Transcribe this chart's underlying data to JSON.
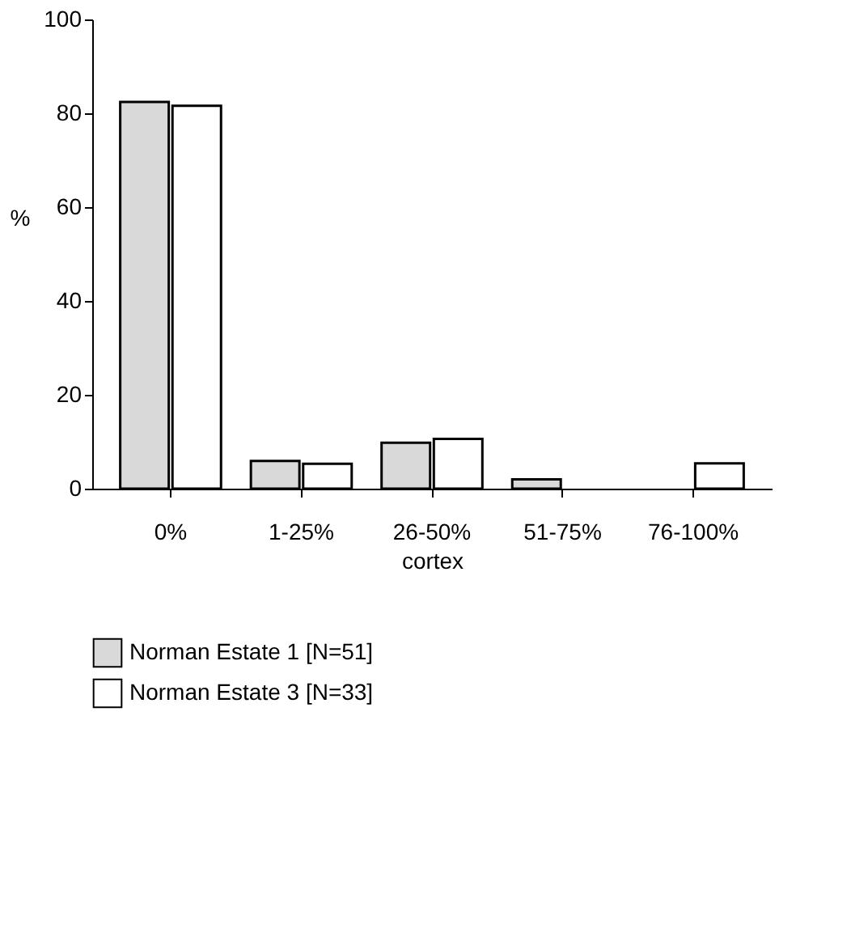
{
  "chart_data": {
    "type": "bar",
    "xlabel": "cortex",
    "ylabel": "%",
    "categories": [
      "0%",
      "1-25%",
      "26-50%",
      "51-75%",
      "76-100%"
    ],
    "series": [
      {
        "name": "Norman Estate 1 [N=51]",
        "color": "#d9d9d9",
        "values": [
          82.4,
          5.9,
          9.8,
          2.0,
          0
        ]
      },
      {
        "name": "Norman Estate 3 [N=33]",
        "color": "#ffffff",
        "values": [
          81.6,
          5.3,
          10.6,
          0,
          5.4
        ]
      }
    ],
    "ylim": [
      0,
      100
    ],
    "yticks": [
      0,
      20,
      40,
      60,
      80,
      100
    ],
    "grid": false,
    "legend": "bottom"
  }
}
